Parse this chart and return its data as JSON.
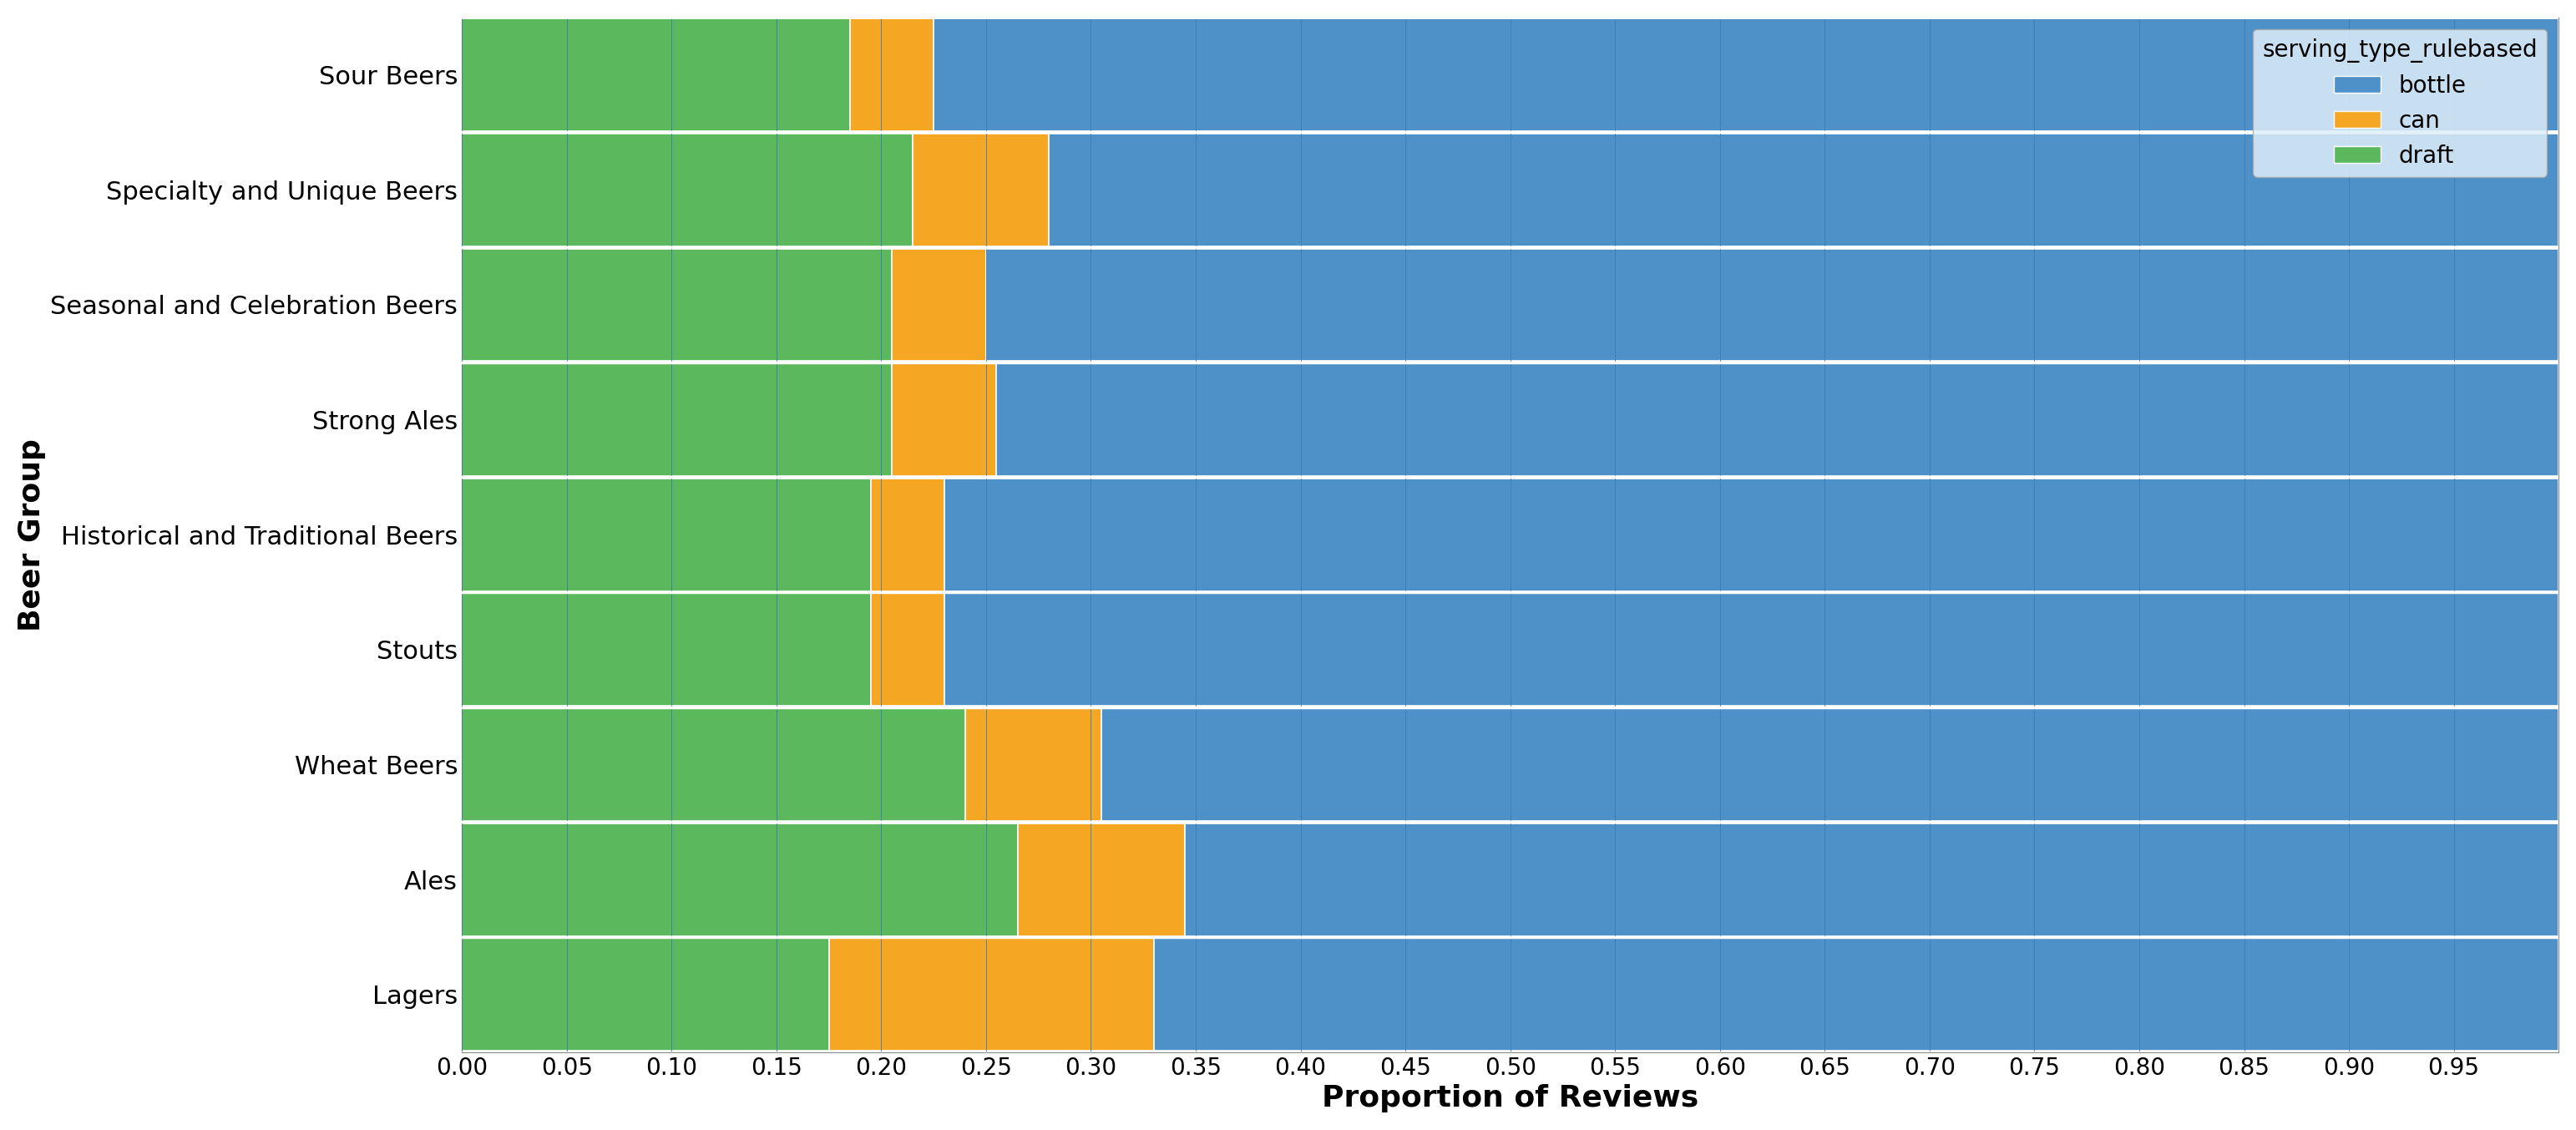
{
  "categories": [
    "Lagers",
    "Ales",
    "Wheat Beers",
    "Stouts",
    "Historical and Traditional Beers",
    "Strong Ales",
    "Seasonal and Celebration Beers",
    "Specialty and Unique Beers",
    "Sour Beers"
  ],
  "draft": [
    0.175,
    0.265,
    0.24,
    0.195,
    0.195,
    0.205,
    0.205,
    0.215,
    0.185
  ],
  "can": [
    0.155,
    0.08,
    0.065,
    0.035,
    0.035,
    0.05,
    0.045,
    0.065,
    0.04
  ],
  "bottle": [
    0.67,
    0.655,
    0.695,
    0.77,
    0.77,
    0.745,
    0.75,
    0.72,
    0.775
  ],
  "colors": {
    "bottle": "#4e90c8",
    "can": "#f5a623",
    "draft": "#5cb85c"
  },
  "xlabel": "Proportion of Reviews",
  "ylabel": "Beer Group",
  "legend_title": "serving_type_rulebased",
  "xticks": [
    0.0,
    0.05,
    0.1,
    0.15,
    0.2,
    0.25,
    0.3,
    0.35,
    0.4,
    0.45,
    0.5,
    0.55,
    0.6,
    0.65,
    0.7,
    0.75,
    0.8,
    0.85,
    0.9,
    0.95
  ],
  "background_color": "#c8dff0",
  "bar_edge_color": "white",
  "grid_color": "#8ab4cc",
  "bar_linewidth": 1.2,
  "inner_grid_color": "#3a7db5",
  "inner_grid_linewidth": 0.6
}
